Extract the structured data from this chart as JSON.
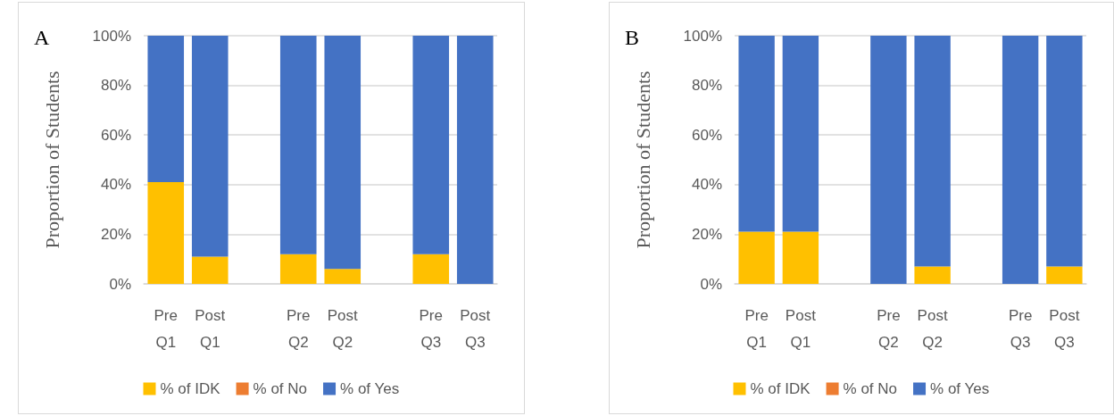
{
  "chart_data": [
    {
      "type": "bar",
      "title": "A",
      "ylabel": "Proportion of Students",
      "stacked": true,
      "grid": "y",
      "legend": "bottom",
      "categories": [
        "Pre\nQ1",
        "Post\nQ1",
        null,
        "Pre\nQ2",
        "Post\nQ2",
        null,
        "Pre\nQ3",
        "Post\nQ3"
      ],
      "ylim": [
        0,
        100
      ],
      "yticks": [
        {
          "value": 0,
          "label": "0%"
        },
        {
          "value": 20,
          "label": "20%"
        },
        {
          "value": 40,
          "label": "40%"
        },
        {
          "value": 60,
          "label": "60%"
        },
        {
          "value": 80,
          "label": "80%"
        },
        {
          "value": 100,
          "label": "100%"
        }
      ],
      "series": [
        {
          "name": "% of IDK",
          "color": "#ffc000",
          "values": [
            41,
            11,
            null,
            12,
            6,
            null,
            12,
            0
          ]
        },
        {
          "name": "% of No",
          "color": "#ed7d31",
          "values": [
            0,
            0,
            null,
            0,
            0,
            null,
            0,
            0
          ]
        },
        {
          "name": "% of Yes",
          "color": "#4472c4",
          "values": [
            59,
            89,
            null,
            88,
            94,
            null,
            88,
            100
          ]
        }
      ]
    },
    {
      "type": "bar",
      "title": "B",
      "ylabel": "Proportion of Students",
      "stacked": true,
      "grid": "y",
      "legend": "bottom",
      "categories": [
        "Pre\nQ1",
        "Post\nQ1",
        null,
        "Pre\nQ2",
        "Post\nQ2",
        null,
        "Pre\nQ3",
        "Post\nQ3"
      ],
      "ylim": [
        0,
        100
      ],
      "yticks": [
        {
          "value": 0,
          "label": "0%"
        },
        {
          "value": 20,
          "label": "20%"
        },
        {
          "value": 40,
          "label": "40%"
        },
        {
          "value": 60,
          "label": "60%"
        },
        {
          "value": 80,
          "label": "80%"
        },
        {
          "value": 100,
          "label": "100%"
        }
      ],
      "series": [
        {
          "name": "% of IDK",
          "color": "#ffc000",
          "values": [
            21,
            21,
            null,
            0,
            7,
            null,
            0,
            7
          ]
        },
        {
          "name": "% of No",
          "color": "#ed7d31",
          "values": [
            0,
            0,
            null,
            0,
            0,
            null,
            0,
            0
          ]
        },
        {
          "name": "% of Yes",
          "color": "#4472c4",
          "values": [
            79,
            79,
            null,
            100,
            93,
            null,
            100,
            93
          ]
        }
      ]
    }
  ]
}
